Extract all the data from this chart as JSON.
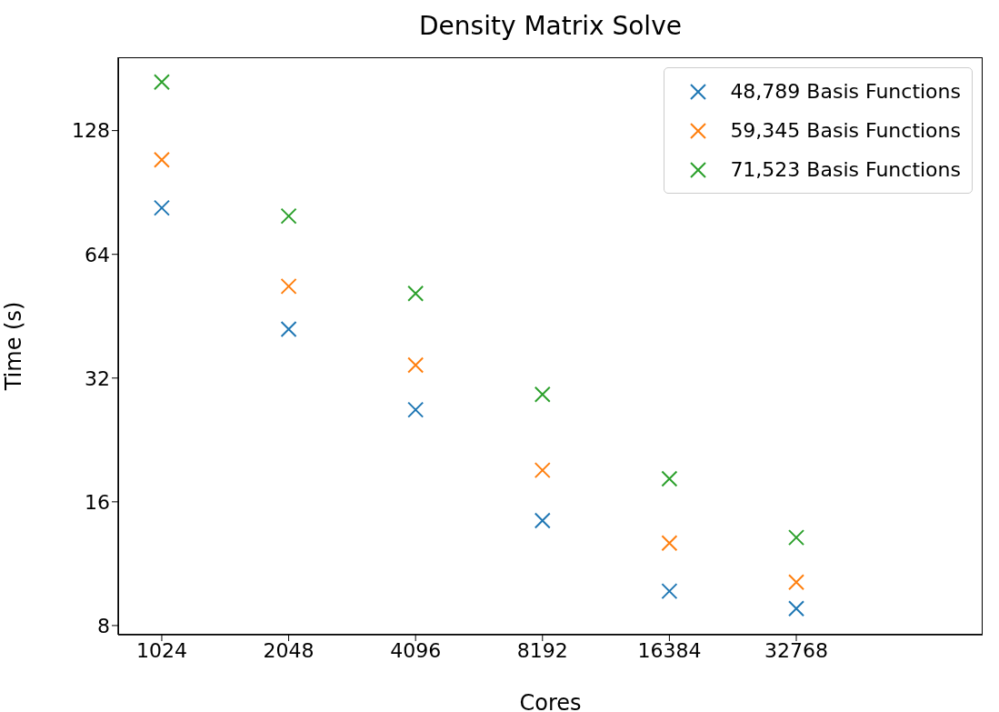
{
  "chart_data": {
    "type": "scatter",
    "title": "Density Matrix Solve",
    "xlabel": "Cores",
    "ylabel": "Time (s)",
    "log": "xy",
    "marker": "cross",
    "legend": "top right",
    "grid": false,
    "x": [
      1024,
      2048,
      4096,
      8192,
      16384,
      32768
    ],
    "xlim": [
      807,
      90670
    ],
    "xticks": [
      1024,
      2048,
      4096,
      8192,
      16384,
      32768
    ],
    "ylim": [
      7.6,
      193
    ],
    "yticks": [
      8,
      16,
      32,
      64,
      128
    ],
    "series": [
      {
        "name": "48,789 Basis Functions",
        "color": "#1f77b4",
        "values": [
          83,
          42.1,
          26.8,
          14.4,
          9.7,
          8.8
        ]
      },
      {
        "name": "59,345 Basis Functions",
        "color": "#ff7f0e",
        "values": [
          108.7,
          53.5,
          34.4,
          19.1,
          12.7,
          10.2
        ]
      },
      {
        "name": "71,523 Basis Functions",
        "color": "#2ca02c",
        "values": [
          168,
          79.3,
          51.4,
          29.2,
          18.2,
          13.1
        ]
      }
    ]
  }
}
